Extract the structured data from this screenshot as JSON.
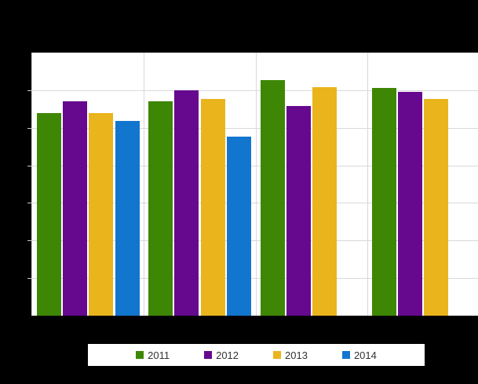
{
  "canvas": {
    "background": "#000000",
    "title_text_visible": false
  },
  "chart_data": {
    "type": "bar",
    "grouped": true,
    "title": "",
    "xlabel": "",
    "ylabel": "",
    "categories": [
      "",
      "",
      "",
      ""
    ],
    "x_tick_labels_visible": false,
    "y_tick_labels_visible": false,
    "value_unit": "y-axis gridline intervals (axis labels not visible in image)",
    "ylim": [
      0,
      7
    ],
    "y_gridline_interval": 1,
    "grid": true,
    "legend_position": "bottom",
    "series": [
      {
        "name": "2011",
        "color": "#3e8705",
        "values": [
          5.4,
          5.7,
          6.26,
          6.07
        ]
      },
      {
        "name": "2012",
        "color": "#66098e",
        "values": [
          5.7,
          5.99,
          5.58,
          5.95
        ]
      },
      {
        "name": "2013",
        "color": "#eab41d",
        "values": [
          5.4,
          5.77,
          6.09,
          5.76
        ]
      },
      {
        "name": "2014",
        "color": "#1276cf",
        "values": [
          5.18,
          4.76,
          null,
          null
        ]
      }
    ]
  },
  "legend": {
    "items": [
      {
        "label": "2011",
        "color": "#3e8705"
      },
      {
        "label": "2012",
        "color": "#66098e"
      },
      {
        "label": "2013",
        "color": "#eab41d"
      },
      {
        "label": "2014",
        "color": "#1276cf"
      }
    ]
  },
  "colors": {
    "page_background": "#000000",
    "plot_background": "#ffffff",
    "gridline": "#d9d9d9",
    "axis_tick": "#c9c9c9",
    "legend_background": "#ffffff",
    "legend_text": "#333333"
  }
}
